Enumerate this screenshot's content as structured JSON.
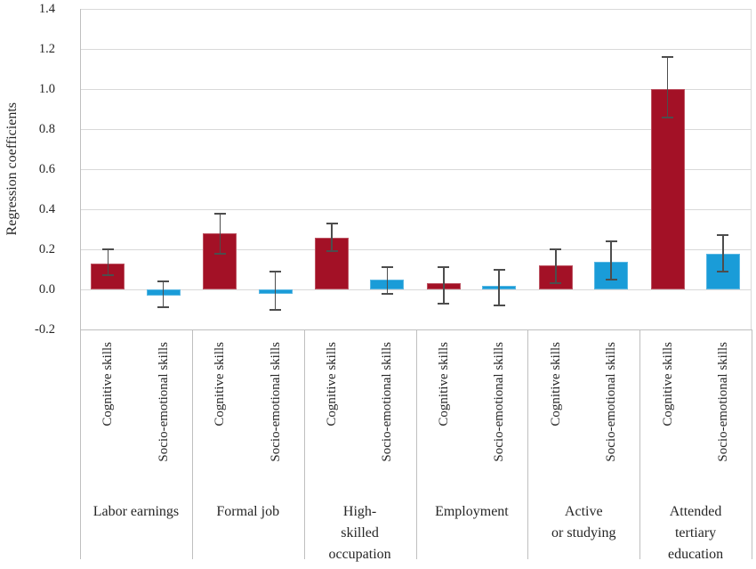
{
  "chart_data": {
    "type": "bar",
    "ylabel": "Regression coefficients",
    "ylim": [
      -0.2,
      1.4
    ],
    "ytick_step": 0.2,
    "ytick_labels": [
      "1.4",
      "1.2",
      "1.0",
      "0.8",
      "0.6",
      "0.4",
      "0.2",
      "0.0",
      "-0.2"
    ],
    "grid": true,
    "legend": "none",
    "error_bars": true,
    "series": [
      {
        "name": "Cognitive skills",
        "color": "#A31126"
      },
      {
        "name": "Socio-emotional skills",
        "color": "#1A9CD8"
      }
    ],
    "groups": [
      {
        "label": "Labor earnings",
        "label_lines": [
          "Labor earnings"
        ],
        "bars": [
          {
            "series": "Cognitive skills",
            "value": 0.13,
            "ci_low": 0.07,
            "ci_high": 0.2
          },
          {
            "series": "Socio-emotional skills",
            "value": -0.03,
            "ci_low": -0.09,
            "ci_high": 0.04
          }
        ]
      },
      {
        "label": "Formal job",
        "label_lines": [
          "Formal job"
        ],
        "bars": [
          {
            "series": "Cognitive skills",
            "value": 0.28,
            "ci_low": 0.18,
            "ci_high": 0.38
          },
          {
            "series": "Socio-emotional skills",
            "value": -0.02,
            "ci_low": -0.1,
            "ci_high": 0.09
          }
        ]
      },
      {
        "label": "High-skilled occupation",
        "label_lines": [
          "High-",
          "skilled",
          "occupation"
        ],
        "bars": [
          {
            "series": "Cognitive skills",
            "value": 0.26,
            "ci_low": 0.19,
            "ci_high": 0.33
          },
          {
            "series": "Socio-emotional skills",
            "value": 0.05,
            "ci_low": -0.02,
            "ci_high": 0.11
          }
        ]
      },
      {
        "label": "Employment",
        "label_lines": [
          "Employment"
        ],
        "bars": [
          {
            "series": "Cognitive skills",
            "value": 0.03,
            "ci_low": -0.07,
            "ci_high": 0.11
          },
          {
            "series": "Socio-emotional skills",
            "value": 0.02,
            "ci_low": -0.08,
            "ci_high": 0.1
          }
        ]
      },
      {
        "label": "Active or studying",
        "label_lines": [
          "Active",
          "or studying"
        ],
        "bars": [
          {
            "series": "Cognitive skills",
            "value": 0.12,
            "ci_low": 0.03,
            "ci_high": 0.2
          },
          {
            "series": "Socio-emotional skills",
            "value": 0.14,
            "ci_low": 0.05,
            "ci_high": 0.24
          }
        ]
      },
      {
        "label": "Attended tertiary education",
        "label_lines": [
          "Attended",
          "tertiary",
          "education"
        ],
        "bars": [
          {
            "series": "Cognitive skills",
            "value": 1.0,
            "ci_low": 0.86,
            "ci_high": 1.16
          },
          {
            "series": "Socio-emotional skills",
            "value": 0.18,
            "ci_low": 0.09,
            "ci_high": 0.27
          }
        ]
      }
    ],
    "colors": {
      "gridline": "#D9D9D9",
      "axis_line": "#BFBFBF",
      "error_bar": "#4D4D4D",
      "text": "#262626",
      "background": "#FFFFFF"
    }
  }
}
